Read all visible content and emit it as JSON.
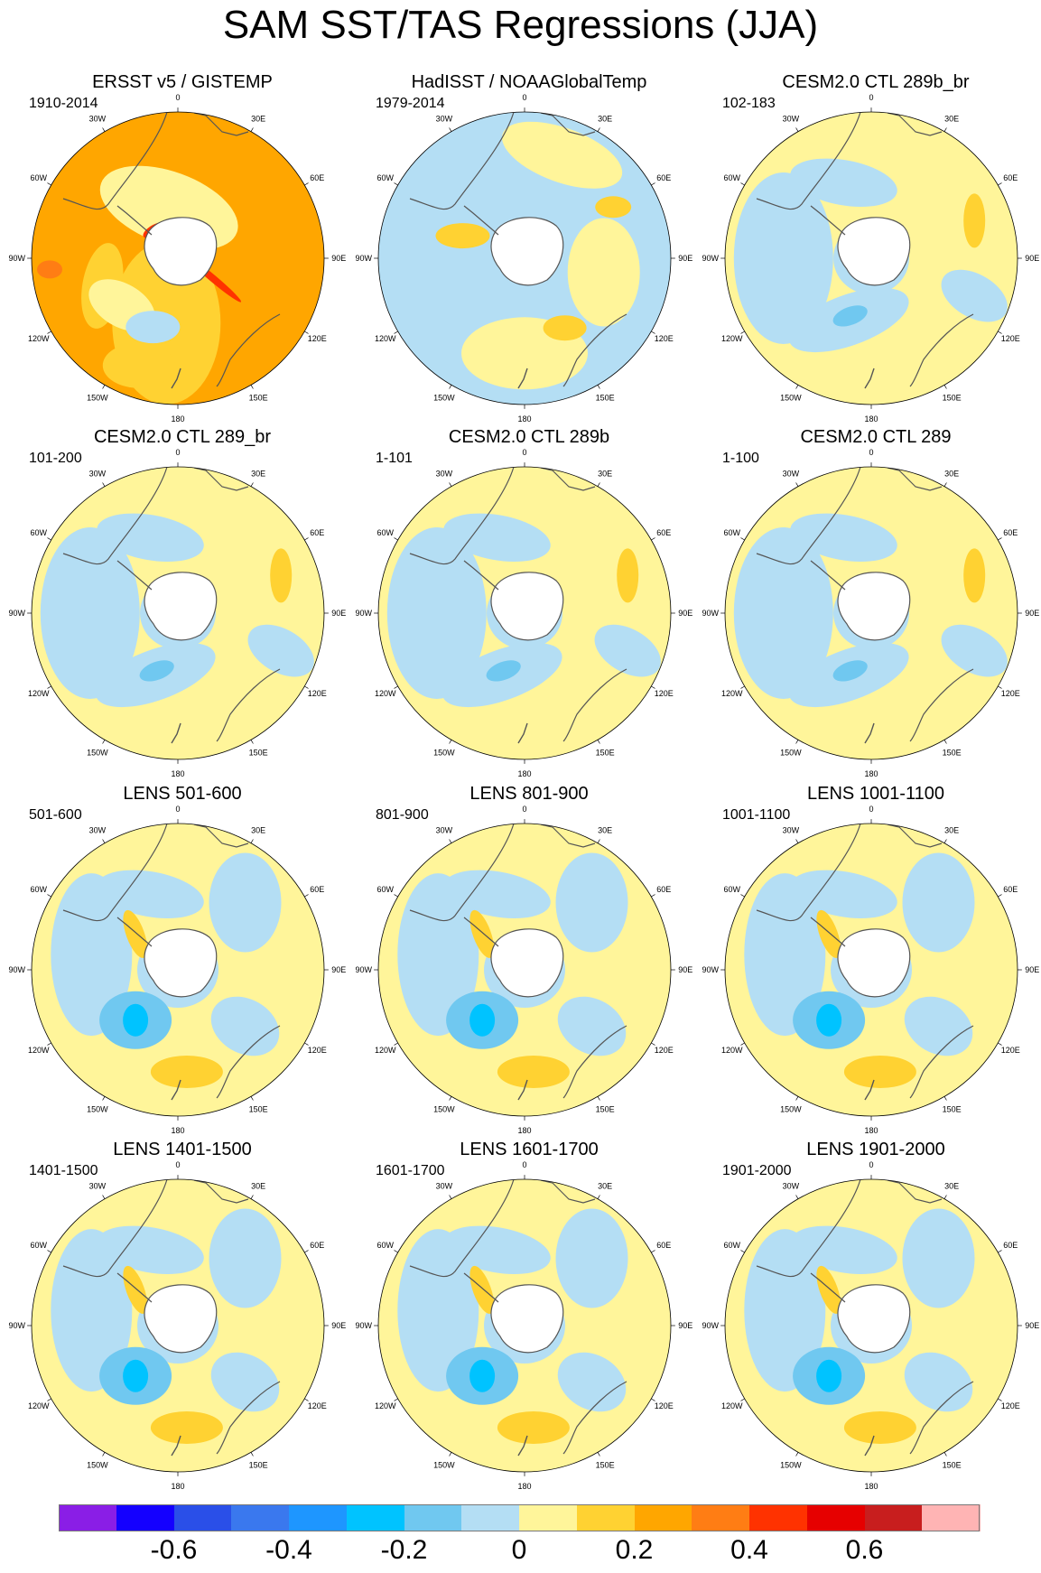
{
  "figure": {
    "title": "SAM SST/TAS Regressions (JJA)"
  },
  "longitude_labels": [
    "0",
    "30E",
    "60E",
    "90E",
    "120E",
    "150E",
    "180",
    "150W",
    "120W",
    "90W",
    "60W",
    "30W"
  ],
  "palette": {
    "levels": [
      "#8a1ee6",
      "#1400ff",
      "#2a4fe8",
      "#3a78ee",
      "#1e96ff",
      "#00c3ff",
      "#70c8f0",
      "#b4def4",
      "#fff59a",
      "#ffd232",
      "#ffa600",
      "#ff7d14",
      "#ff3200",
      "#e60000",
      "#c81e1e",
      "#ffb4b4"
    ],
    "land": "#ffffff",
    "coast": "#555555"
  },
  "colorbar": {
    "ticks": [
      "-0.6",
      "-0.4",
      "-0.2",
      "0",
      "0.2",
      "0.4",
      "0.6"
    ],
    "tick_values": [
      -0.6,
      -0.4,
      -0.2,
      0,
      0.2,
      0.4,
      0.6
    ],
    "range": [
      -0.8,
      0.8
    ]
  },
  "panels": [
    {
      "title": "ERSST v5 / GISTEMP",
      "period": "1910-2014",
      "pattern": "ersst"
    },
    {
      "title": "HadISST / NOAAGlobalTemp",
      "period": "1979-2014",
      "pattern": "had"
    },
    {
      "title": "CESM2.0 CTL 289b_br",
      "period": "102-183",
      "pattern": "neutral"
    },
    {
      "title": "CESM2.0 CTL 289_br",
      "period": "101-200",
      "pattern": "neutral"
    },
    {
      "title": "CESM2.0 CTL 289b",
      "period": "1-101",
      "pattern": "neutral"
    },
    {
      "title": "CESM2.0 CTL 289",
      "period": "1-100",
      "pattern": "neutral"
    },
    {
      "title": "LENS 501-600",
      "period": "501-600",
      "pattern": "lens"
    },
    {
      "title": "LENS 801-900",
      "period": "801-900",
      "pattern": "lens"
    },
    {
      "title": "LENS 1001-1100",
      "period": "1001-1100",
      "pattern": "lens"
    },
    {
      "title": "LENS 1401-1500",
      "period": "1401-1500",
      "pattern": "lens"
    },
    {
      "title": "LENS 1601-1700",
      "period": "1601-1700",
      "pattern": "lens"
    },
    {
      "title": "LENS 1901-2000",
      "period": "1901-2000",
      "pattern": "lens"
    }
  ]
}
